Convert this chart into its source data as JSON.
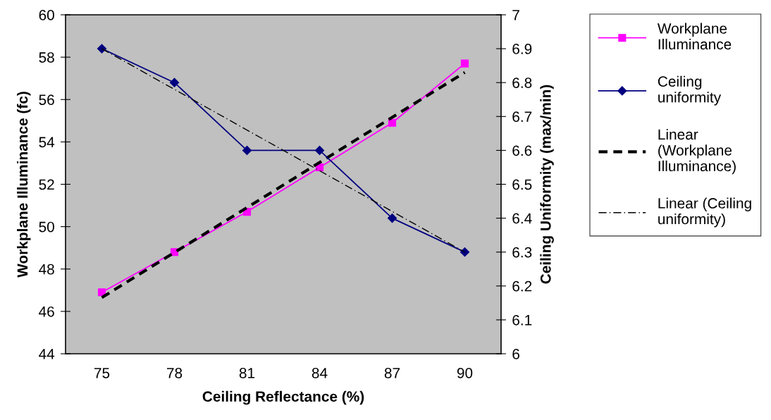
{
  "chart_data": {
    "type": "line",
    "xlabel": "Ceiling Reflectance (%)",
    "ylabel": "Workplane Illuminance (fc)",
    "y2label": "Ceiling Uniformity (max/min)",
    "categories": [
      "75",
      "78",
      "81",
      "84",
      "87",
      "90"
    ],
    "series": [
      {
        "name": "Workplane Illuminance",
        "color": "#ff00ff",
        "marker": "square",
        "line_style": "solid",
        "values": [
          46.9,
          48.8,
          50.7,
          52.8,
          54.9,
          57.7
        ]
      },
      {
        "name": "Ceiling uniformity",
        "color": "#000080",
        "marker": "diamond",
        "line_style": "solid",
        "axis": "y2",
        "values": [
          6.9,
          6.8,
          6.6,
          6.6,
          6.4,
          6.3
        ]
      },
      {
        "name": "Linear (Workplane Illuminance)",
        "color": "#000000",
        "marker": "none",
        "line_style": "dashed",
        "values": [
          46.65,
          48.78,
          50.9,
          53.03,
          55.16,
          57.28
        ]
      },
      {
        "name": "Linear (Ceiling uniformity)",
        "color": "#000000",
        "marker": "none",
        "line_style": "dashdot",
        "axis": "y2",
        "values": [
          6.9,
          6.78,
          6.66,
          6.54,
          6.42,
          6.3
        ]
      }
    ],
    "ylim": [
      44,
      60
    ],
    "yticks": [
      44,
      46,
      48,
      50,
      52,
      54,
      56,
      58,
      60
    ],
    "y2lim": [
      6,
      7
    ],
    "y2ticks": [
      6,
      {
        "value": 6.1,
        "label": "6.1"
      },
      {
        "value": 6.2,
        "label": "6.2"
      },
      {
        "value": 6.3,
        "label": "6.3"
      },
      {
        "value": 6.4,
        "label": "6.4"
      },
      {
        "value": 6.5,
        "label": "6.5"
      },
      {
        "value": 6.6,
        "label": "6.6"
      },
      {
        "value": 6.7,
        "label": "6.7"
      },
      {
        "value": 6.8,
        "label": "6.8"
      },
      {
        "value": 6.9,
        "label": "6.9"
      },
      7
    ],
    "grid": false,
    "legend": "right"
  }
}
